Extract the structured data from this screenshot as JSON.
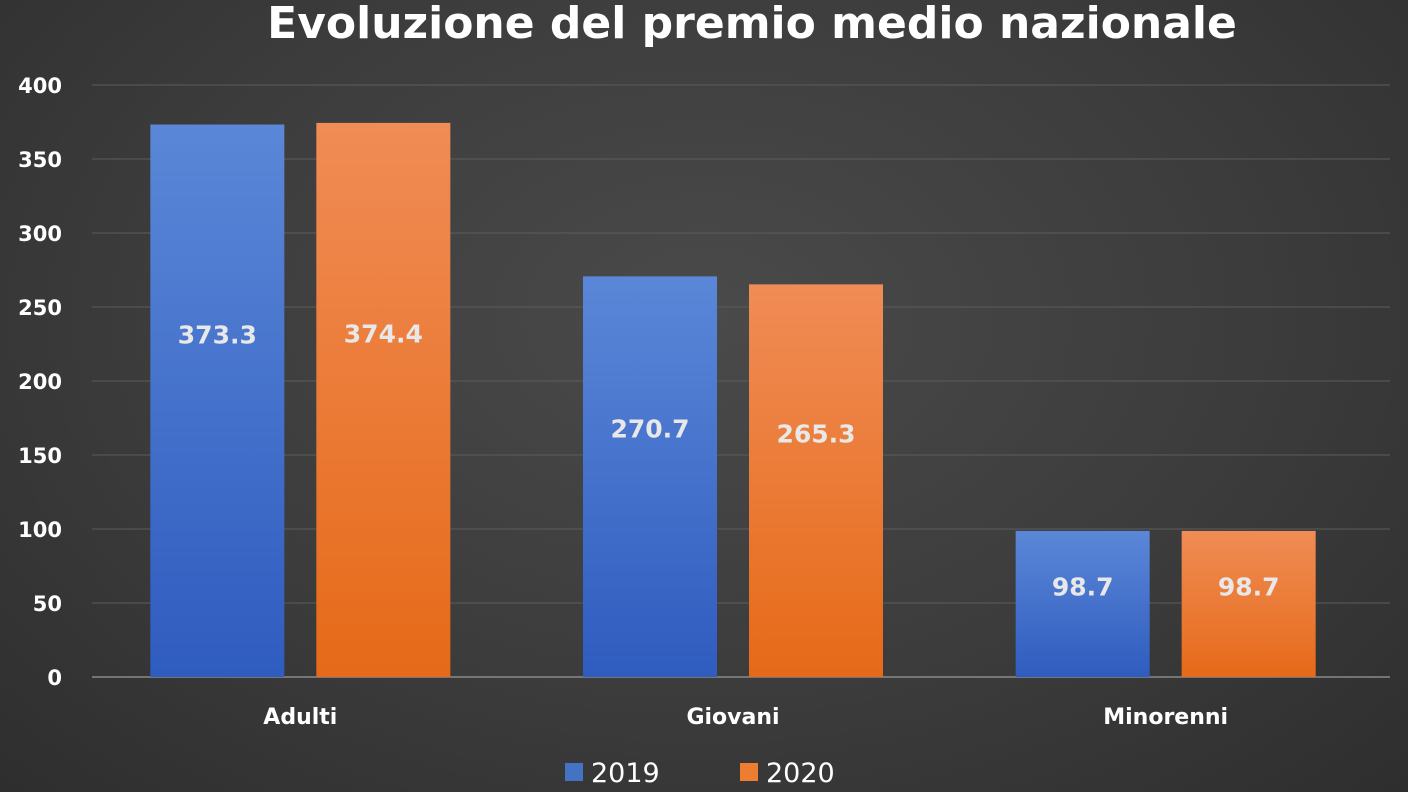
{
  "chart_data": {
    "type": "bar",
    "title": "Evoluzione del premio medio nazionale",
    "xlabel": "",
    "ylabel": "",
    "categories": [
      "Adulti",
      "Giovani",
      "Minorenni"
    ],
    "series": [
      {
        "name": "2019",
        "values": [
          373.3,
          270.7,
          98.7
        ],
        "color": "#4472c4"
      },
      {
        "name": "2020",
        "values": [
          374.4,
          265.3,
          98.7
        ],
        "color": "#ed7d31"
      }
    ],
    "data_labels": [
      [
        "373.3",
        "270.7",
        "98.7"
      ],
      [
        "374.4",
        "265.3",
        "98.7"
      ]
    ],
    "ylim": [
      0,
      400
    ],
    "yticks": [
      "0",
      "50",
      "100",
      "150",
      "200",
      "250",
      "300",
      "350",
      "400"
    ],
    "grid": true,
    "legend": "bottom"
  }
}
